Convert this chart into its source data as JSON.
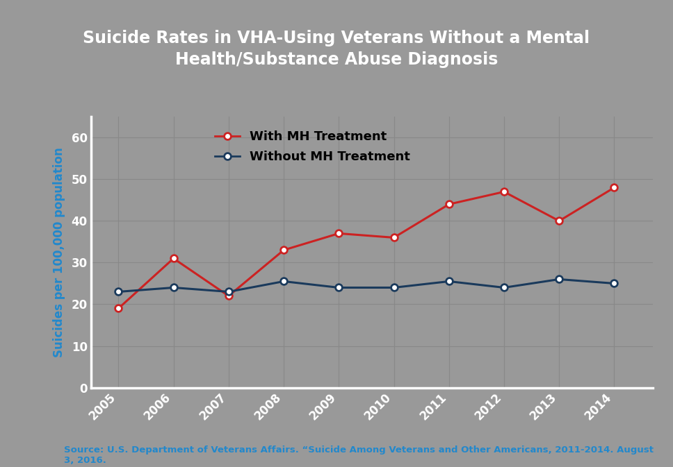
{
  "title": "Suicide Rates in VHA-Using Veterans Without a Mental\nHealth/Substance Abuse Diagnosis",
  "ylabel": "Suicides per 100,000 population",
  "years": [
    2005,
    2006,
    2007,
    2008,
    2009,
    2010,
    2011,
    2012,
    2013,
    2014
  ],
  "with_mh": [
    19,
    31,
    22,
    33,
    37,
    36,
    44,
    47,
    40,
    48
  ],
  "without_mh": [
    23,
    24,
    23,
    25.5,
    24,
    24,
    25.5,
    24,
    26,
    25
  ],
  "with_mh_color": "#cc2222",
  "without_mh_color": "#1a3a5c",
  "background_color": "#999999",
  "border_color": "#707070",
  "title_color": "#ffffff",
  "ylabel_color": "#2288cc",
  "tick_color": "#ffffff",
  "source_text": "Source: U.S. Department of Veterans Affairs. “Suicide Among Veterans and Other Americans, 2011-2014. August\n3, 2016.",
  "source_color": "#2288cc",
  "legend_with": "With MH Treatment",
  "legend_without": "Without MH Treatment",
  "ylim": [
    0,
    65
  ],
  "yticks": [
    0,
    10,
    20,
    30,
    40,
    50,
    60
  ],
  "title_fontsize": 17,
  "axis_fontsize": 12,
  "tick_fontsize": 12,
  "legend_fontsize": 13
}
